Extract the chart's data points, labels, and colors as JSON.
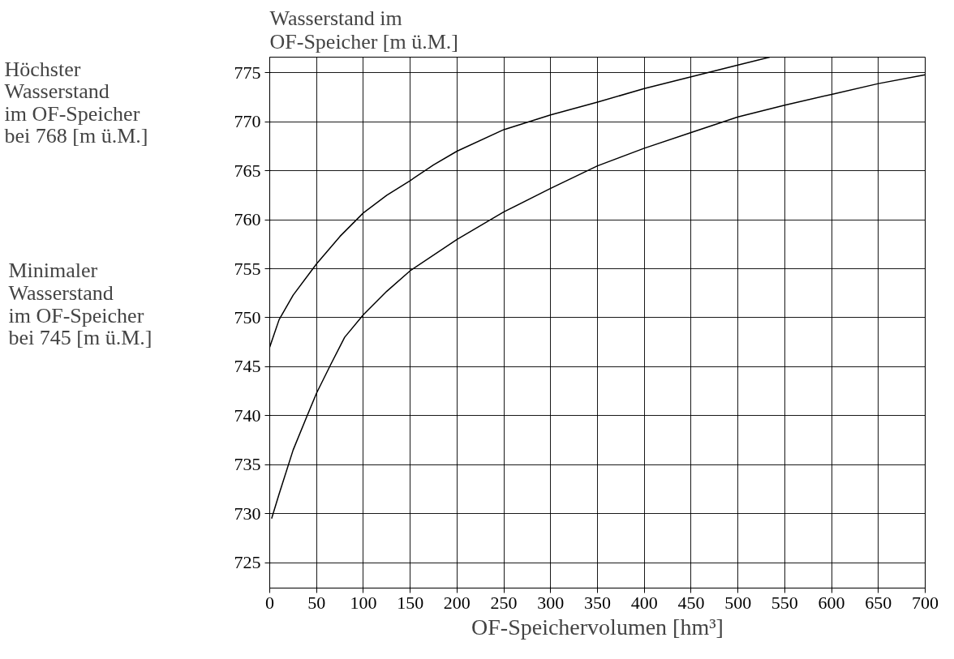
{
  "chart_data": {
    "type": "line",
    "xlabel": "OF-Speichervolumen [hm³]",
    "ylabel": "Wasserstand im\nOF-Speicher [m ü.M.]",
    "annotations": [
      "Höchster\nWasserstand\nim OF-Speicher\nbei 768 [m ü.M.]",
      "Minimaler\nWasserstand\nim OF-Speicher\nbei 745 [m ü.M.]"
    ],
    "series": [
      {
        "color": "#000000",
        "x": [
          0,
          10,
          25,
          50,
          75,
          100,
          125,
          150,
          175,
          200,
          250,
          300,
          350,
          400,
          450,
          500,
          534
        ],
        "values": [
          747,
          749.8,
          752.3,
          755.5,
          758.3,
          760.7,
          762.5,
          764,
          765.6,
          767,
          769.2,
          770.7,
          772,
          773.4,
          774.6,
          775.8,
          776.6
        ]
      },
      {
        "color": "#000000",
        "x": [
          2,
          10,
          25,
          40,
          50,
          65,
          80,
          100,
          125,
          150,
          200,
          250,
          300,
          350,
          400,
          450,
          500,
          550,
          600,
          650,
          700
        ],
        "values": [
          729.5,
          732,
          736.5,
          740,
          742.3,
          745.2,
          748,
          750.3,
          752.7,
          754.8,
          758,
          760.8,
          763.2,
          765.5,
          767.3,
          768.9,
          770.5,
          771.7,
          772.8,
          773.9,
          774.8
        ]
      }
    ],
    "xlim": [
      0,
      700
    ],
    "ylim": [
      722.4,
      776.6
    ],
    "xticks": [
      0,
      50,
      100,
      150,
      200,
      250,
      300,
      350,
      400,
      450,
      500,
      550,
      600,
      650,
      700
    ],
    "yticks": [
      725,
      730,
      735,
      740,
      745,
      750,
      755,
      760,
      765,
      770,
      775
    ],
    "grid": true,
    "marker": "none",
    "line_style": "solid"
  }
}
